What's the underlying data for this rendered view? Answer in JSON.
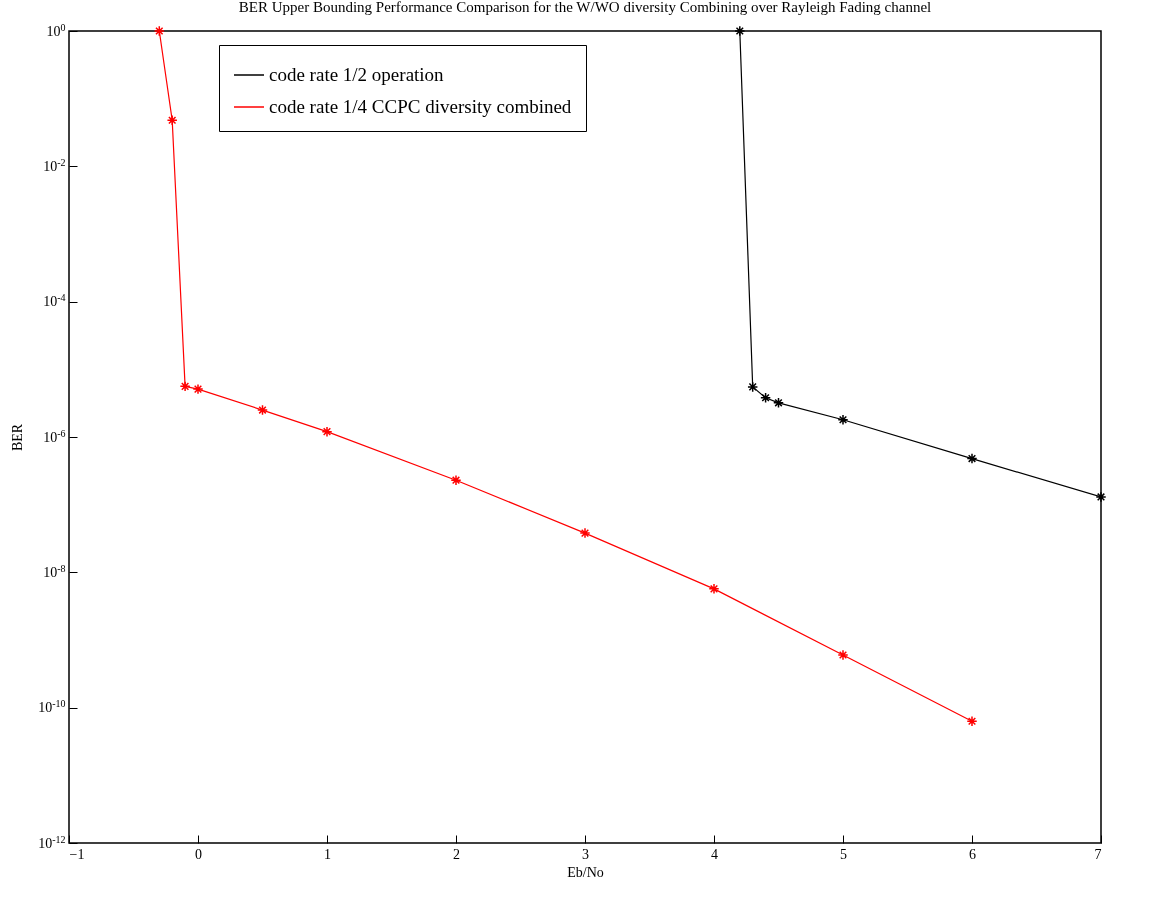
{
  "chart_data": {
    "type": "line",
    "title": "BER Upper Bounding Performance Comparison for the W/WO diversity Combining over Rayleigh Fading channel",
    "xlabel": "Eb/No",
    "ylabel": "BER",
    "log": "y",
    "xlim": [
      -1,
      7
    ],
    "xticks": [
      -1,
      0,
      1,
      2,
      3,
      4,
      5,
      6,
      7
    ],
    "ylim": [
      1e-12,
      1
    ],
    "yticks": [
      {
        "value": 1,
        "label": "10$^{0}$"
      },
      {
        "value": 0.01,
        "label": "10$^{-2}$"
      },
      {
        "value": 0.0001,
        "label": "10$^{-4}$"
      },
      {
        "value": 1e-06,
        "label": "10$^{-6}$"
      },
      {
        "value": 1e-08,
        "label": "10$^{-8}$"
      },
      {
        "value": 1e-10,
        "label": "10$^{-10}$"
      },
      {
        "value": 1e-12,
        "label": "10$^{-12}$"
      }
    ],
    "grid": false,
    "legend": "top left",
    "marker": "cross",
    "line_style": "solid",
    "series": [
      {
        "name": "code rate 1/2 operation",
        "color": "#000000",
        "x": [
          4.2,
          4.3,
          4.4,
          4.5,
          5,
          6,
          7
        ],
        "values": [
          1,
          5.5e-06,
          3.8e-06,
          3.2e-06,
          1.8e-06,
          4.8e-07,
          1.3e-07
        ]
      },
      {
        "name": "code rate 1/4 CCPC diversity combined",
        "color": "#ff0000",
        "x": [
          -0.3,
          -0.2,
          -0.1,
          0,
          0.5,
          1,
          2,
          3,
          4,
          5,
          6
        ],
        "values": [
          1,
          0.048,
          5.6e-06,
          5.1e-06,
          2.5e-06,
          1.2e-06,
          2.3e-07,
          3.8e-08,
          5.7e-09,
          6e-10,
          6.3e-11
        ]
      }
    ]
  }
}
